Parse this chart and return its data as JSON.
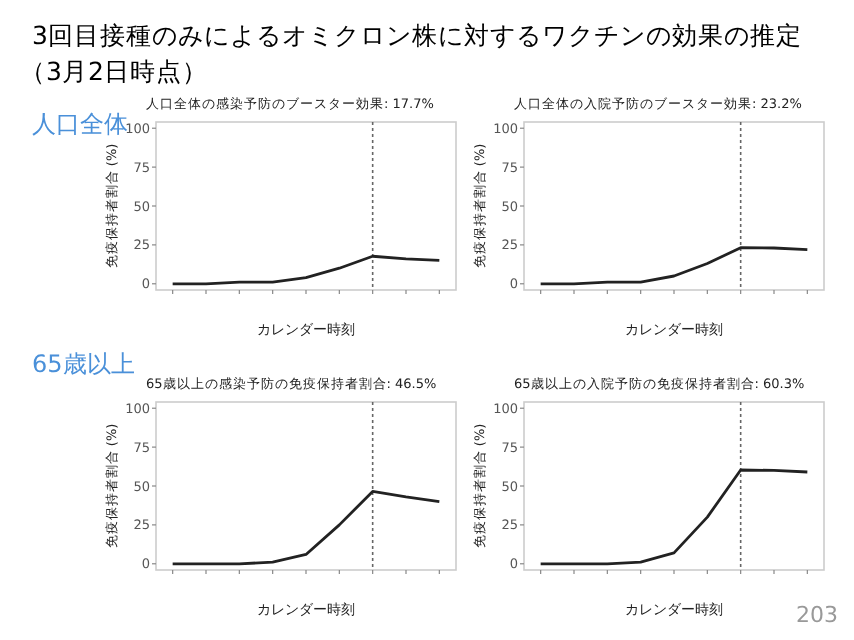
{
  "chart_data": [
    {
      "type": "other",
      "title": "3回目接種のみによるオミクロン株に対するワクチンの効果の推定",
      "subtitle": "（3月2日時点）",
      "annotations": [
        "人口全体",
        "65歳以上",
        "203"
      ]
    },
    {
      "type": "line",
      "title": "人口全体の感染予防のブースター効果: 17.7%",
      "xlabel": "カレンダー時刻",
      "ylabel": "免疫保持者割合 (%)",
      "categories": [
        null,
        null,
        null,
        null,
        null,
        null,
        null,
        null,
        null
      ],
      "ylim": [
        -4,
        104
      ],
      "yticks": [
        0,
        25,
        50,
        75,
        100
      ],
      "series": [
        {
          "color": "#222222",
          "values": [
            0,
            0,
            1,
            1,
            4,
            10,
            17.7,
            16,
            15
          ]
        }
      ]
    },
    {
      "type": "line",
      "title": "人口全体の入院予防のブースター効果: 23.2%",
      "xlabel": "カレンダー時刻",
      "ylabel": "免疫保持者割合 (%)",
      "categories": [
        null,
        null,
        null,
        null,
        null,
        null,
        null,
        null,
        null
      ],
      "ylim": [
        -4,
        104
      ],
      "yticks": [
        0,
        25,
        50,
        75,
        100
      ],
      "series": [
        {
          "color": "#222222",
          "values": [
            0,
            0,
            1,
            1,
            5,
            13,
            23.2,
            23,
            22
          ]
        }
      ]
    },
    {
      "type": "line",
      "title": "65歳以上の感染予防の免疫保持者割合: 46.5%",
      "xlabel": "カレンダー時刻",
      "ylabel": "免疫保持者割合 (%)",
      "categories": [
        null,
        null,
        null,
        null,
        null,
        null,
        null,
        null,
        null
      ],
      "ylim": [
        -4,
        104
      ],
      "yticks": [
        0,
        25,
        50,
        75,
        100
      ],
      "series": [
        {
          "color": "#222222",
          "values": [
            0,
            0,
            0,
            1,
            6,
            25,
            46.5,
            43,
            40
          ]
        }
      ]
    },
    {
      "type": "line",
      "title": "65歳以上の入院予防の免疫保持者割合: 60.3%",
      "xlabel": "カレンダー時刻",
      "ylabel": "免疫保持者割合 (%)",
      "categories": [
        null,
        null,
        null,
        null,
        null,
        null,
        null,
        null,
        null
      ],
      "ylim": [
        -4,
        104
      ],
      "yticks": [
        0,
        25,
        50,
        75,
        100
      ],
      "series": [
        {
          "color": "#222222",
          "values": [
            0,
            0,
            0,
            1,
            7,
            30,
            60.3,
            60,
            59
          ]
        }
      ]
    }
  ]
}
